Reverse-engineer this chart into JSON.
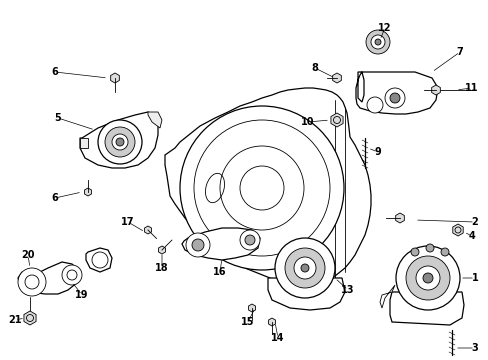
{
  "bg_color": "#ffffff",
  "line_color": "#000000",
  "fig_width": 4.89,
  "fig_height": 3.6,
  "dpi": 100,
  "font_size": 7.0,
  "lw_thin": 0.6,
  "lw_med": 0.9,
  "lw_thick": 1.2
}
